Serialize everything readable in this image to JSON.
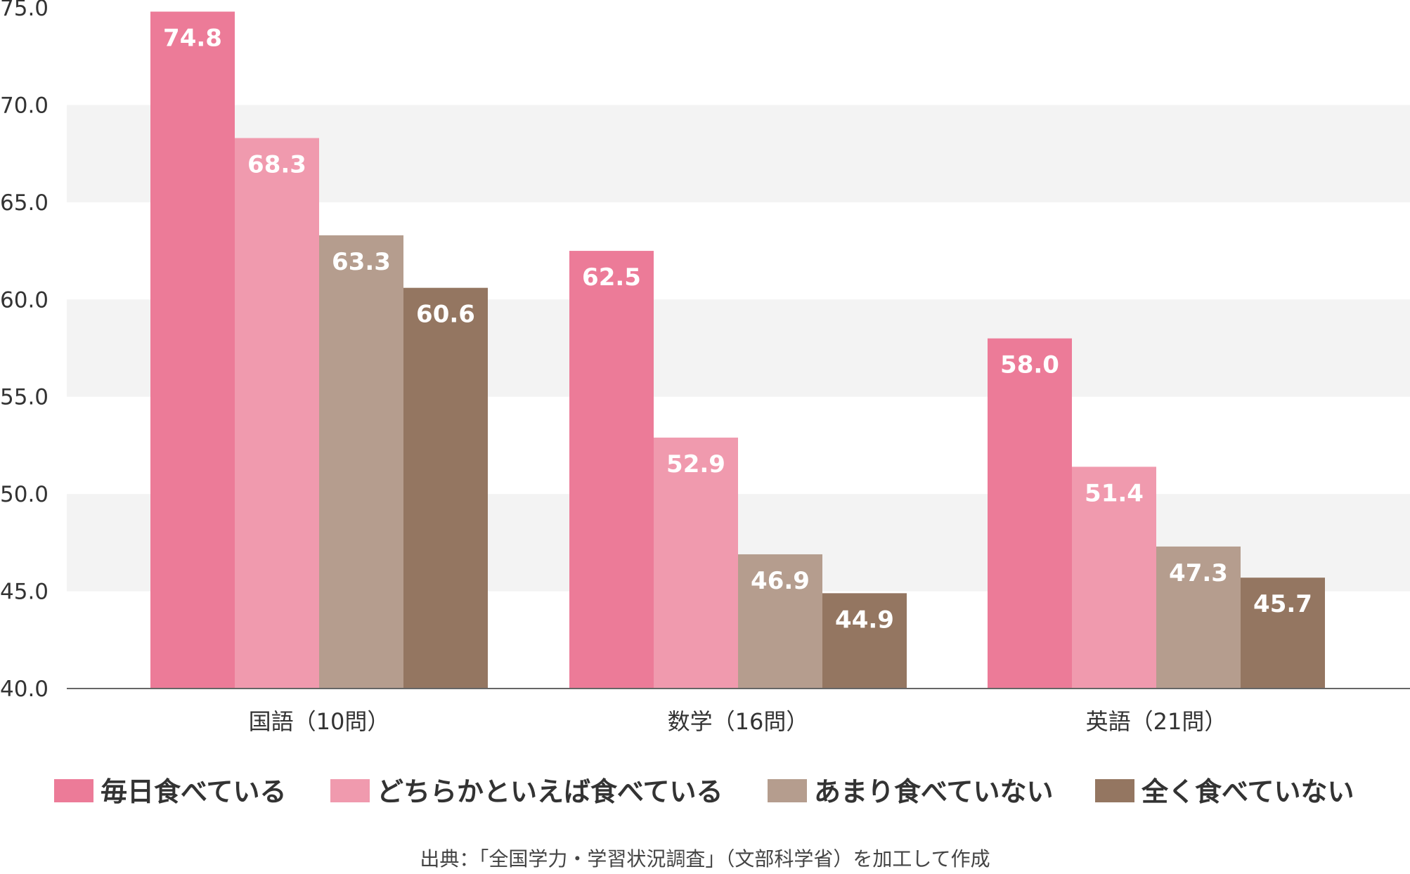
{
  "chart_data": {
    "type": "bar",
    "categories": [
      "国語（10問）",
      "数学（16問）",
      "英語（21問）"
    ],
    "series": [
      {
        "name": "毎日食べている",
        "values": [
          74.8,
          62.5,
          58.0
        ],
        "color": "#ec7b98"
      },
      {
        "name": "どちらかといえば食べている",
        "values": [
          68.3,
          52.9,
          51.4
        ],
        "color": "#f09aae"
      },
      {
        "name": "あまり食べていない",
        "values": [
          63.3,
          46.9,
          47.3
        ],
        "color": "#b59d8e"
      },
      {
        "name": "全く食べていない",
        "values": [
          60.6,
          44.9,
          45.7
        ],
        "color": "#947661"
      }
    ],
    "y_ticks": [
      "40.0",
      "45.0",
      "50.0",
      "55.0",
      "60.0",
      "65.0",
      "70.0",
      "75.0"
    ],
    "ylim": [
      40,
      75
    ],
    "band_color": "#f3f3f3",
    "grid": "alternating-bands",
    "legend_position": "bottom"
  },
  "source_note": "出典：「全国学力・学習状況調査」（文部科学省）を加工して作成"
}
